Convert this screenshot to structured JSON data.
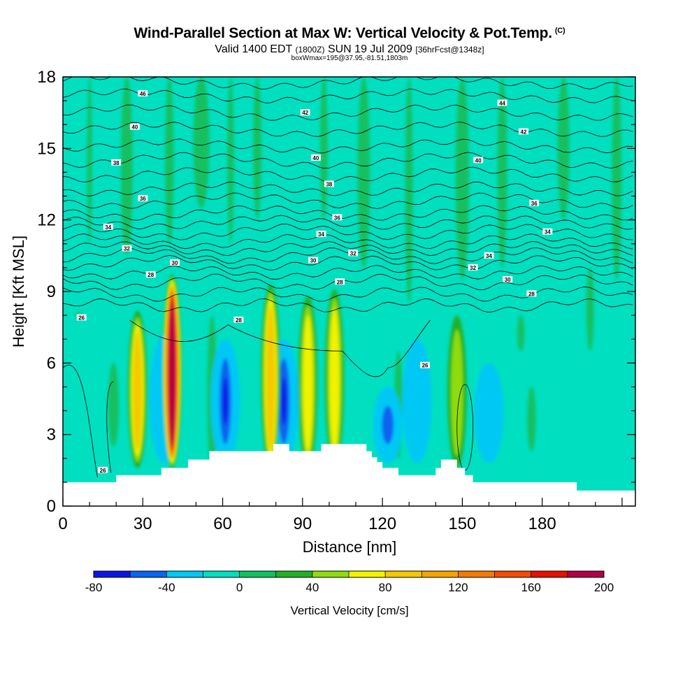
{
  "title": "Wind-Parallel Section at Max W: Vertical Velocity & Pot.Temp.",
  "copyright": "(C)",
  "subtitle_a": "Valid 1400 EDT",
  "subtitle_b": "(1800Z)",
  "subtitle_c": "SUN 19 Jul 2009",
  "subtitle_d": "[36hrFcst@1348z]",
  "subtitle2": "boxWmax=195@37.95,-81.51,1803m",
  "chart_data": {
    "type": "heatmap",
    "title": "Wind-Parallel Section at Max W: Vertical Velocity & Pot.Temp.",
    "xlabel": "Distance [nm]",
    "ylabel": "Height [Kft MSL]",
    "xlim": [
      0,
      215
    ],
    "ylim": [
      0,
      18
    ],
    "x_ticks": [
      0,
      30,
      60,
      90,
      120,
      150,
      180
    ],
    "y_ticks": [
      0,
      3,
      6,
      9,
      12,
      15,
      18
    ],
    "colorbar": {
      "label": "Vertical Velocity [cm/s]",
      "ticks": [
        -80,
        -40,
        0,
        40,
        80,
        120,
        160,
        200
      ],
      "levels": [
        -80,
        -60,
        -40,
        -20,
        0,
        20,
        40,
        60,
        80,
        100,
        120,
        140,
        160,
        180,
        200
      ],
      "colors": [
        "#0b14e8",
        "#0a64f0",
        "#00c8f5",
        "#00dfc0",
        "#13c060",
        "#22b025",
        "#8edc10",
        "#f2f200",
        "#f5c800",
        "#f5a400",
        "#f57a00",
        "#f54b00",
        "#e81000",
        "#b00048"
      ]
    },
    "updraft_cores": [
      {
        "x": 41,
        "z_top": 9.7,
        "w_max": 195
      },
      {
        "x": 28,
        "z_top": 8.2,
        "w_max": 80
      },
      {
        "x": 78,
        "z_top": 9.3,
        "w_max": 80
      },
      {
        "x": 92,
        "z_top": 8.8,
        "w_max": 60
      },
      {
        "x": 102,
        "z_top": 9.1,
        "w_max": 60
      },
      {
        "x": 148,
        "z_top": 8.0,
        "w_max": 40
      }
    ],
    "downdraft_cores": [
      {
        "x": 61,
        "z_top": 7.0,
        "w_min": -75
      },
      {
        "x": 83,
        "z_top": 7.0,
        "w_min": -60
      },
      {
        "x": 38,
        "z_top": 7.2,
        "w_min": -20
      },
      {
        "x": 133,
        "z_top": 7.0,
        "w_min": -20
      },
      {
        "x": 122,
        "z_top": 5.0,
        "w_min": -50
      },
      {
        "x": 160,
        "z_top": 6.0,
        "w_min": -20
      }
    ],
    "terrain_profile": [
      [
        0,
        1.0
      ],
      [
        20,
        1.0
      ],
      [
        20,
        1.3
      ],
      [
        37,
        1.3
      ],
      [
        37,
        1.6
      ],
      [
        47,
        1.6
      ],
      [
        47,
        1.95
      ],
      [
        55,
        1.95
      ],
      [
        55,
        2.3
      ],
      [
        79,
        2.3
      ],
      [
        79,
        2.6
      ],
      [
        85,
        2.6
      ],
      [
        85,
        2.3
      ],
      [
        97,
        2.3
      ],
      [
        97,
        2.6
      ],
      [
        114,
        2.6
      ],
      [
        114,
        2.3
      ],
      [
        116,
        2.3
      ],
      [
        116,
        2.05
      ],
      [
        118,
        2.05
      ],
      [
        118,
        1.85
      ],
      [
        120,
        1.85
      ],
      [
        120,
        1.6
      ],
      [
        126,
        1.6
      ],
      [
        126,
        1.3
      ],
      [
        140,
        1.3
      ],
      [
        140,
        1.6
      ],
      [
        142,
        1.6
      ],
      [
        142,
        1.95
      ],
      [
        148,
        1.95
      ],
      [
        148,
        1.6
      ],
      [
        151,
        1.6
      ],
      [
        151,
        1.3
      ],
      [
        154,
        1.3
      ],
      [
        154,
        1.0
      ],
      [
        193,
        1.0
      ],
      [
        193,
        0.65
      ],
      [
        215,
        0.65
      ]
    ],
    "theta_labels": [
      {
        "value": "46",
        "x": 30,
        "z": 17.3
      },
      {
        "value": "44",
        "x": 165,
        "z": 16.9
      },
      {
        "value": "42",
        "x": 91,
        "z": 16.5
      },
      {
        "value": "42",
        "x": 173,
        "z": 15.7
      },
      {
        "value": "40",
        "x": 27,
        "z": 15.9
      },
      {
        "value": "40",
        "x": 95,
        "z": 14.6
      },
      {
        "value": "40",
        "x": 156,
        "z": 14.5
      },
      {
        "value": "38",
        "x": 20,
        "z": 14.4
      },
      {
        "value": "38",
        "x": 100,
        "z": 13.5
      },
      {
        "value": "36",
        "x": 30,
        "z": 12.9
      },
      {
        "value": "36",
        "x": 103,
        "z": 12.1
      },
      {
        "value": "36",
        "x": 177,
        "z": 12.7
      },
      {
        "value": "34",
        "x": 17,
        "z": 11.7
      },
      {
        "value": "34",
        "x": 97,
        "z": 11.4
      },
      {
        "value": "34",
        "x": 182,
        "z": 11.5
      },
      {
        "value": "34",
        "x": 160,
        "z": 10.5
      },
      {
        "value": "32",
        "x": 24,
        "z": 10.8
      },
      {
        "value": "32",
        "x": 109,
        "z": 10.6
      },
      {
        "value": "32",
        "x": 154,
        "z": 10.0
      },
      {
        "value": "30",
        "x": 42,
        "z": 10.2
      },
      {
        "value": "30",
        "x": 94,
        "z": 10.3
      },
      {
        "value": "30",
        "x": 167,
        "z": 9.5
      },
      {
        "value": "28",
        "x": 33,
        "z": 9.7
      },
      {
        "value": "28",
        "x": 104,
        "z": 9.4
      },
      {
        "value": "28",
        "x": 176,
        "z": 8.9
      },
      {
        "value": "28",
        "x": 66,
        "z": 7.8
      },
      {
        "value": "26",
        "x": 7,
        "z": 7.9
      },
      {
        "value": "26",
        "x": 136,
        "z": 5.9
      },
      {
        "value": "26",
        "x": 15,
        "z": 1.5
      }
    ]
  }
}
